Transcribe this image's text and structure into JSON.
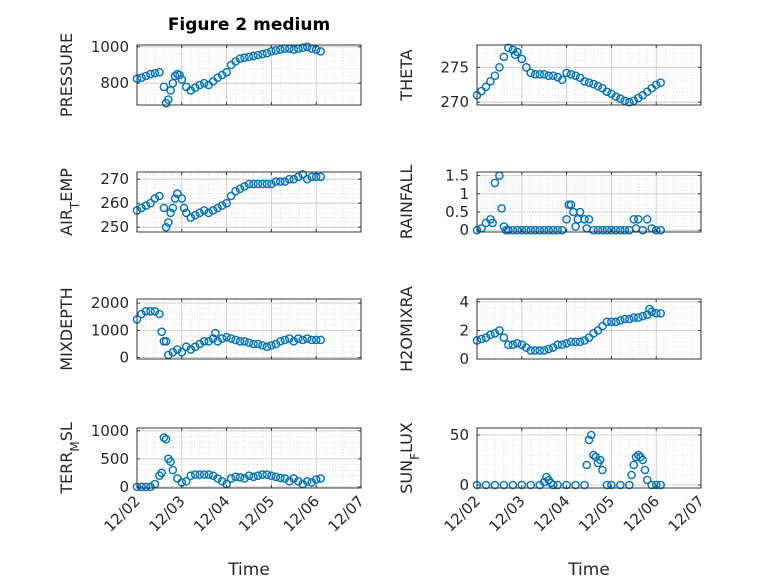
{
  "figure": {
    "title": "Figure 2 medium",
    "marker_color": "#0072BD"
  },
  "x_tick_labels": [
    "12/02",
    "12/03",
    "12/04",
    "12/05",
    "12/06",
    "12/07"
  ],
  "x_axis_label": "Time",
  "chart_data": [
    {
      "type": "scatter",
      "ylabel": "PRESSURE",
      "ylim": [
        680,
        1010
      ],
      "yticks": [
        800,
        1000
      ],
      "x": [
        0.0,
        0.1,
        0.2,
        0.3,
        0.4,
        0.5,
        0.6,
        0.65,
        0.7,
        0.75,
        0.8,
        0.85,
        0.9,
        0.95,
        1.0,
        1.1,
        1.2,
        1.3,
        1.4,
        1.5,
        1.6,
        1.7,
        1.8,
        1.9,
        2.0,
        2.1,
        2.2,
        2.3,
        2.4,
        2.5,
        2.6,
        2.7,
        2.8,
        2.9,
        3.0,
        3.1,
        3.2,
        3.3,
        3.4,
        3.5,
        3.6,
        3.7,
        3.8,
        3.9,
        4.0,
        4.1
      ],
      "y": [
        825,
        830,
        840,
        850,
        855,
        860,
        780,
        690,
        710,
        760,
        800,
        840,
        850,
        845,
        820,
        780,
        760,
        775,
        790,
        800,
        790,
        810,
        830,
        845,
        860,
        900,
        920,
        935,
        940,
        945,
        950,
        955,
        960,
        965,
        975,
        980,
        985,
        990,
        990,
        985,
        990,
        995,
        1000,
        990,
        985,
        975
      ],
      "grid": true
    },
    {
      "type": "scatter",
      "ylabel": "THETA",
      "ylim": [
        269.6,
        278.2
      ],
      "yticks": [
        270,
        275
      ],
      "x": [
        0.0,
        0.1,
        0.2,
        0.3,
        0.4,
        0.5,
        0.6,
        0.7,
        0.8,
        0.85,
        0.9,
        1.0,
        1.1,
        1.2,
        1.3,
        1.4,
        1.5,
        1.6,
        1.7,
        1.8,
        1.9,
        2.0,
        2.1,
        2.2,
        2.3,
        2.4,
        2.5,
        2.6,
        2.7,
        2.8,
        2.9,
        3.0,
        3.1,
        3.2,
        3.3,
        3.4,
        3.5,
        3.6,
        3.7,
        3.8,
        3.9,
        4.0,
        4.1
      ],
      "y": [
        271.0,
        271.6,
        272.2,
        273.0,
        273.8,
        275.0,
        276.5,
        277.8,
        277.5,
        276.8,
        277.2,
        276.2,
        275.0,
        274.2,
        274.0,
        274.0,
        274.0,
        273.8,
        273.8,
        273.6,
        273.2,
        274.2,
        274.0,
        273.8,
        273.5,
        273.0,
        272.8,
        272.6,
        272.3,
        272.0,
        271.5,
        271.2,
        270.8,
        270.5,
        270.2,
        270.0,
        270.2,
        270.6,
        271.0,
        271.5,
        272.0,
        272.5,
        272.8
      ],
      "grid": true
    },
    {
      "type": "scatter",
      "ylabel": "AIR_TEMP",
      "ylim": [
        248,
        273
      ],
      "yticks": [
        250,
        260,
        270
      ],
      "x": [
        0.0,
        0.1,
        0.2,
        0.3,
        0.4,
        0.5,
        0.6,
        0.65,
        0.7,
        0.75,
        0.8,
        0.85,
        0.9,
        1.0,
        1.05,
        1.1,
        1.2,
        1.3,
        1.4,
        1.5,
        1.6,
        1.7,
        1.8,
        1.9,
        2.0,
        2.1,
        2.2,
        2.3,
        2.4,
        2.5,
        2.6,
        2.7,
        2.8,
        2.9,
        3.0,
        3.1,
        3.2,
        3.3,
        3.4,
        3.5,
        3.6,
        3.7,
        3.8,
        3.9,
        4.0,
        4.1
      ],
      "y": [
        257,
        258,
        259,
        260,
        262,
        263,
        258,
        250,
        252,
        256,
        258,
        262,
        264,
        262,
        258,
        256,
        254,
        255,
        256,
        257,
        256,
        257,
        258,
        259,
        260,
        263,
        265,
        266,
        267,
        268,
        268,
        268,
        268,
        268,
        268,
        269,
        269,
        269,
        270,
        270,
        271,
        272,
        270,
        271,
        271,
        271
      ],
      "grid": true
    },
    {
      "type": "scatter",
      "ylabel": "RAINFALL",
      "ylim": [
        -0.05,
        1.6
      ],
      "yticks": [
        0,
        0.5,
        1,
        1.5
      ],
      "x": [
        0.0,
        0.1,
        0.2,
        0.3,
        0.35,
        0.4,
        0.5,
        0.55,
        0.6,
        0.65,
        0.7,
        0.8,
        0.9,
        1.0,
        1.1,
        1.2,
        1.3,
        1.4,
        1.5,
        1.6,
        1.7,
        1.8,
        1.9,
        2.0,
        2.05,
        2.1,
        2.15,
        2.2,
        2.25,
        2.3,
        2.4,
        2.45,
        2.5,
        2.6,
        2.7,
        2.8,
        2.9,
        3.0,
        3.1,
        3.2,
        3.3,
        3.4,
        3.5,
        3.55,
        3.6,
        3.7,
        3.8,
        3.9,
        4.0,
        4.1
      ],
      "y": [
        0,
        0.05,
        0.2,
        0.3,
        0.2,
        1.3,
        1.5,
        0.6,
        0.1,
        0,
        0,
        0,
        0,
        0,
        0,
        0,
        0,
        0,
        0,
        0,
        0,
        0,
        0,
        0.3,
        0.7,
        0.7,
        0.5,
        0.1,
        0.3,
        0.5,
        0.3,
        0.05,
        0.3,
        0,
        0,
        0,
        0,
        0,
        0,
        0,
        0,
        0,
        0.3,
        0.05,
        0.3,
        0,
        0.3,
        0.05,
        0,
        0
      ],
      "grid": true
    },
    {
      "type": "scatter",
      "ylabel": "MIXDEPTH",
      "ylim": [
        -50,
        2150
      ],
      "yticks": [
        0,
        1000,
        2000
      ],
      "x": [
        0.0,
        0.1,
        0.2,
        0.3,
        0.4,
        0.5,
        0.55,
        0.6,
        0.65,
        0.7,
        0.8,
        0.9,
        1.0,
        1.1,
        1.2,
        1.3,
        1.4,
        1.5,
        1.6,
        1.7,
        1.75,
        1.8,
        1.9,
        2.0,
        2.1,
        2.2,
        2.3,
        2.4,
        2.5,
        2.6,
        2.7,
        2.8,
        2.9,
        3.0,
        3.1,
        3.2,
        3.3,
        3.4,
        3.5,
        3.6,
        3.7,
        3.8,
        3.9,
        4.0,
        4.1
      ],
      "y": [
        1400,
        1600,
        1700,
        1700,
        1700,
        1600,
        950,
        600,
        600,
        100,
        200,
        300,
        200,
        400,
        300,
        400,
        500,
        600,
        600,
        700,
        900,
        600,
        700,
        750,
        700,
        650,
        600,
        600,
        550,
        500,
        500,
        450,
        400,
        450,
        500,
        600,
        650,
        700,
        600,
        700,
        650,
        700,
        650,
        650,
        650
      ],
      "grid": true
    },
    {
      "type": "scatter",
      "ylabel": "H2OMIXRA",
      "ylim": [
        0,
        4.2
      ],
      "yticks": [
        0,
        2,
        4
      ],
      "x": [
        0.0,
        0.1,
        0.2,
        0.3,
        0.4,
        0.5,
        0.6,
        0.7,
        0.8,
        0.9,
        1.0,
        1.1,
        1.2,
        1.3,
        1.4,
        1.5,
        1.6,
        1.7,
        1.8,
        1.9,
        2.0,
        2.1,
        2.2,
        2.3,
        2.4,
        2.5,
        2.6,
        2.7,
        2.8,
        2.9,
        3.0,
        3.1,
        3.2,
        3.3,
        3.4,
        3.5,
        3.6,
        3.7,
        3.8,
        3.85,
        3.9,
        4.0,
        4.1
      ],
      "y": [
        1.3,
        1.4,
        1.5,
        1.7,
        1.8,
        2.0,
        1.5,
        1.0,
        1.0,
        1.1,
        1.0,
        0.8,
        0.6,
        0.6,
        0.6,
        0.6,
        0.7,
        0.8,
        1.0,
        1.0,
        1.1,
        1.2,
        1.2,
        1.2,
        1.3,
        1.5,
        1.8,
        2.0,
        2.3,
        2.6,
        2.6,
        2.6,
        2.7,
        2.8,
        2.8,
        2.9,
        2.9,
        3.0,
        3.1,
        3.5,
        3.3,
        3.2,
        3.2
      ],
      "grid": true
    },
    {
      "type": "scatter",
      "ylabel": "TERR_MSL",
      "ylim": [
        -20,
        1050
      ],
      "yticks": [
        0,
        500,
        1000
      ],
      "x": [
        0.0,
        0.1,
        0.2,
        0.3,
        0.4,
        0.5,
        0.55,
        0.6,
        0.65,
        0.7,
        0.75,
        0.8,
        0.9,
        1.0,
        1.1,
        1.2,
        1.3,
        1.4,
        1.5,
        1.6,
        1.7,
        1.8,
        1.9,
        2.0,
        2.1,
        2.2,
        2.3,
        2.4,
        2.5,
        2.6,
        2.7,
        2.8,
        2.9,
        3.0,
        3.1,
        3.2,
        3.3,
        3.4,
        3.5,
        3.6,
        3.7,
        3.8,
        3.9,
        4.0,
        4.1
      ],
      "y": [
        0,
        0,
        0,
        0,
        50,
        200,
        250,
        880,
        850,
        500,
        450,
        300,
        150,
        80,
        100,
        200,
        220,
        220,
        220,
        220,
        200,
        150,
        100,
        50,
        150,
        180,
        170,
        150,
        200,
        180,
        200,
        220,
        220,
        200,
        180,
        160,
        150,
        100,
        150,
        100,
        50,
        100,
        80,
        130,
        150
      ],
      "grid": true
    },
    {
      "type": "scatter",
      "ylabel": "SUN_FLUX",
      "ylim": [
        -3,
        57
      ],
      "yticks": [
        0,
        50
      ],
      "x": [
        0.0,
        0.2,
        0.4,
        0.6,
        0.8,
        1.0,
        1.2,
        1.4,
        1.5,
        1.55,
        1.6,
        1.65,
        1.7,
        1.8,
        2.0,
        2.2,
        2.4,
        2.45,
        2.5,
        2.55,
        2.6,
        2.65,
        2.7,
        2.75,
        2.8,
        2.9,
        3.0,
        3.2,
        3.4,
        3.45,
        3.5,
        3.55,
        3.6,
        3.65,
        3.7,
        3.75,
        3.8,
        3.9,
        4.0,
        4.1
      ],
      "y": [
        0,
        0,
        0,
        0,
        0,
        0,
        0,
        0,
        3,
        8,
        5,
        2,
        0,
        0,
        0,
        0,
        0,
        20,
        45,
        50,
        30,
        28,
        22,
        25,
        15,
        0,
        0,
        0,
        0,
        10,
        20,
        28,
        30,
        28,
        25,
        15,
        5,
        0,
        0,
        0
      ],
      "grid": true
    }
  ]
}
